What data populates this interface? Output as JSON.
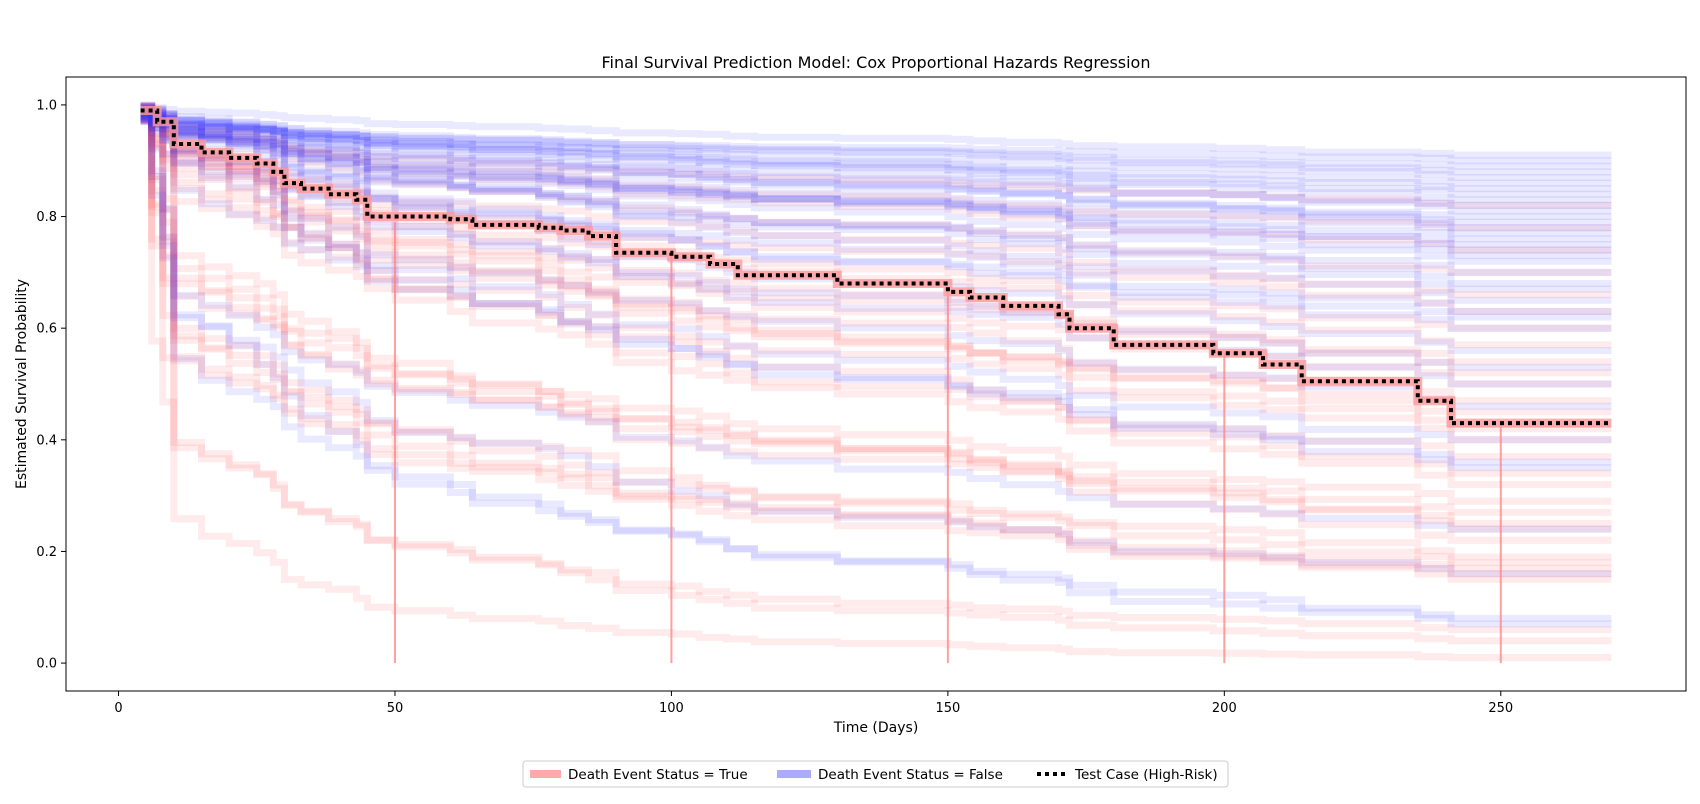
{
  "chart_data": {
    "type": "line",
    "title": "Final Survival Prediction Model: Cox Proportional Hazards Regression",
    "xlabel": "Time (Days)",
    "ylabel": "Estimated Survival Probability",
    "xlim": [
      -9.5,
      283.5
    ],
    "ylim": [
      -0.05,
      1.05
    ],
    "x_ticks": [
      0,
      50,
      100,
      150,
      200,
      250
    ],
    "y_ticks": [
      0.0,
      0.2,
      0.4,
      0.6,
      0.8,
      1.0
    ],
    "x_tick_labels": [
      "0",
      "50",
      "100",
      "150",
      "200",
      "250"
    ],
    "y_tick_labels": [
      "0.0",
      "0.2",
      "0.4",
      "0.6",
      "0.8",
      "1.0"
    ],
    "grid": false,
    "legend_placement": "bottom-center",
    "legend": [
      {
        "label": "Death Event Status = True",
        "color": "#ff7f7f",
        "style": "solid"
      },
      {
        "label": "Death Event Status = False",
        "color": "#7f7fff",
        "style": "solid"
      },
      {
        "label": "Test Case (High-Risk)",
        "color": "#000000",
        "style": "dotted"
      }
    ],
    "colors": {
      "death_true": "#ff4d4d",
      "death_false": "#3b3bff",
      "test_case": "#000000",
      "test_case_band": "#ff9a9a"
    },
    "event_times": [
      4,
      6,
      8,
      10,
      15,
      20,
      25,
      28,
      30,
      33,
      38,
      43,
      45,
      50,
      60,
      64,
      76,
      80,
      85,
      90,
      100,
      105,
      110,
      115,
      130,
      150,
      154,
      160,
      170,
      172,
      180,
      198,
      207,
      214,
      235,
      241,
      270
    ],
    "test_case": {
      "label": "Test Case (High-Risk)",
      "x": [
        4,
        7,
        10,
        15,
        20,
        25,
        28,
        30,
        33,
        38,
        43,
        45,
        60,
        64,
        76,
        80,
        85,
        90,
        100,
        107,
        112,
        130,
        150,
        154,
        160,
        170,
        172,
        180,
        198,
        207,
        214,
        235,
        241,
        270
      ],
      "y": [
        0.99,
        0.97,
        0.93,
        0.915,
        0.905,
        0.895,
        0.88,
        0.86,
        0.85,
        0.84,
        0.83,
        0.8,
        0.795,
        0.785,
        0.78,
        0.775,
        0.765,
        0.735,
        0.728,
        0.715,
        0.695,
        0.68,
        0.665,
        0.655,
        0.64,
        0.625,
        0.6,
        0.57,
        0.555,
        0.535,
        0.505,
        0.47,
        0.43,
        0.43
      ]
    },
    "vertical_lines": {
      "color": "#ff8080",
      "x": [
        50,
        100,
        150,
        200,
        250
      ],
      "from_y": [
        0.79,
        0.73,
        0.665,
        0.555,
        0.43
      ],
      "to_y": [
        0.0,
        0.0,
        0.0,
        0.0,
        0.0
      ]
    },
    "series_final_values": {
      "death_true": [
        0.01,
        0.04,
        0.06,
        0.15,
        0.16,
        0.17,
        0.18,
        0.19,
        0.22,
        0.24,
        0.25,
        0.27,
        0.29,
        0.32,
        0.34,
        0.37,
        0.4,
        0.42,
        0.43,
        0.45,
        0.47,
        0.5,
        0.52,
        0.54,
        0.57,
        0.6,
        0.63,
        0.66,
        0.7,
        0.74,
        0.78,
        0.82
      ],
      "death_false": [
        0.07,
        0.08,
        0.16,
        0.24,
        0.35,
        0.36,
        0.4,
        0.46,
        0.5,
        0.53,
        0.56,
        0.6,
        0.62,
        0.63,
        0.65,
        0.67,
        0.68,
        0.7,
        0.72,
        0.73,
        0.74,
        0.75,
        0.76,
        0.77,
        0.78,
        0.79,
        0.8,
        0.81,
        0.82,
        0.83,
        0.84,
        0.85,
        0.86,
        0.87,
        0.88,
        0.89,
        0.9,
        0.91
      ]
    }
  }
}
